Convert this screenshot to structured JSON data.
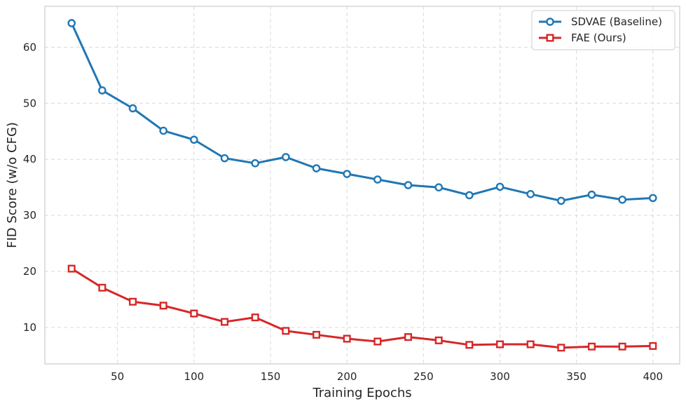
{
  "chart_data": {
    "type": "line",
    "title": "",
    "xlabel": "Training Epochs",
    "ylabel": "FID Score (w/o CFG)",
    "xlim": [
      2.5,
      417.5
    ],
    "ylim": [
      3.5,
      67.3
    ],
    "xticks": [
      50,
      100,
      150,
      200,
      250,
      300,
      350,
      400
    ],
    "yticks": [
      10,
      20,
      30,
      40,
      50,
      60
    ],
    "grid": true,
    "legend_position": "top-right",
    "x": [
      20,
      40,
      60,
      80,
      100,
      120,
      140,
      160,
      180,
      200,
      220,
      240,
      260,
      280,
      300,
      320,
      340,
      360,
      380,
      400
    ],
    "series": [
      {
        "name": "SDVAE (Baseline)",
        "color": "#1f77b4",
        "marker": "circle",
        "values": [
          64.3,
          52.3,
          49.1,
          45.1,
          43.5,
          40.2,
          39.3,
          40.4,
          38.4,
          37.4,
          36.4,
          35.4,
          35.0,
          33.6,
          35.1,
          33.8,
          32.6,
          33.7,
          32.8,
          33.1
        ]
      },
      {
        "name": "FAE (Ours)",
        "color": "#d62728",
        "marker": "square",
        "values": [
          20.5,
          17.1,
          14.6,
          13.9,
          12.5,
          11.0,
          11.8,
          9.4,
          8.7,
          8.0,
          7.5,
          8.3,
          7.7,
          6.9,
          7.0,
          7.0,
          6.4,
          6.6,
          6.6,
          6.7
        ]
      }
    ]
  }
}
